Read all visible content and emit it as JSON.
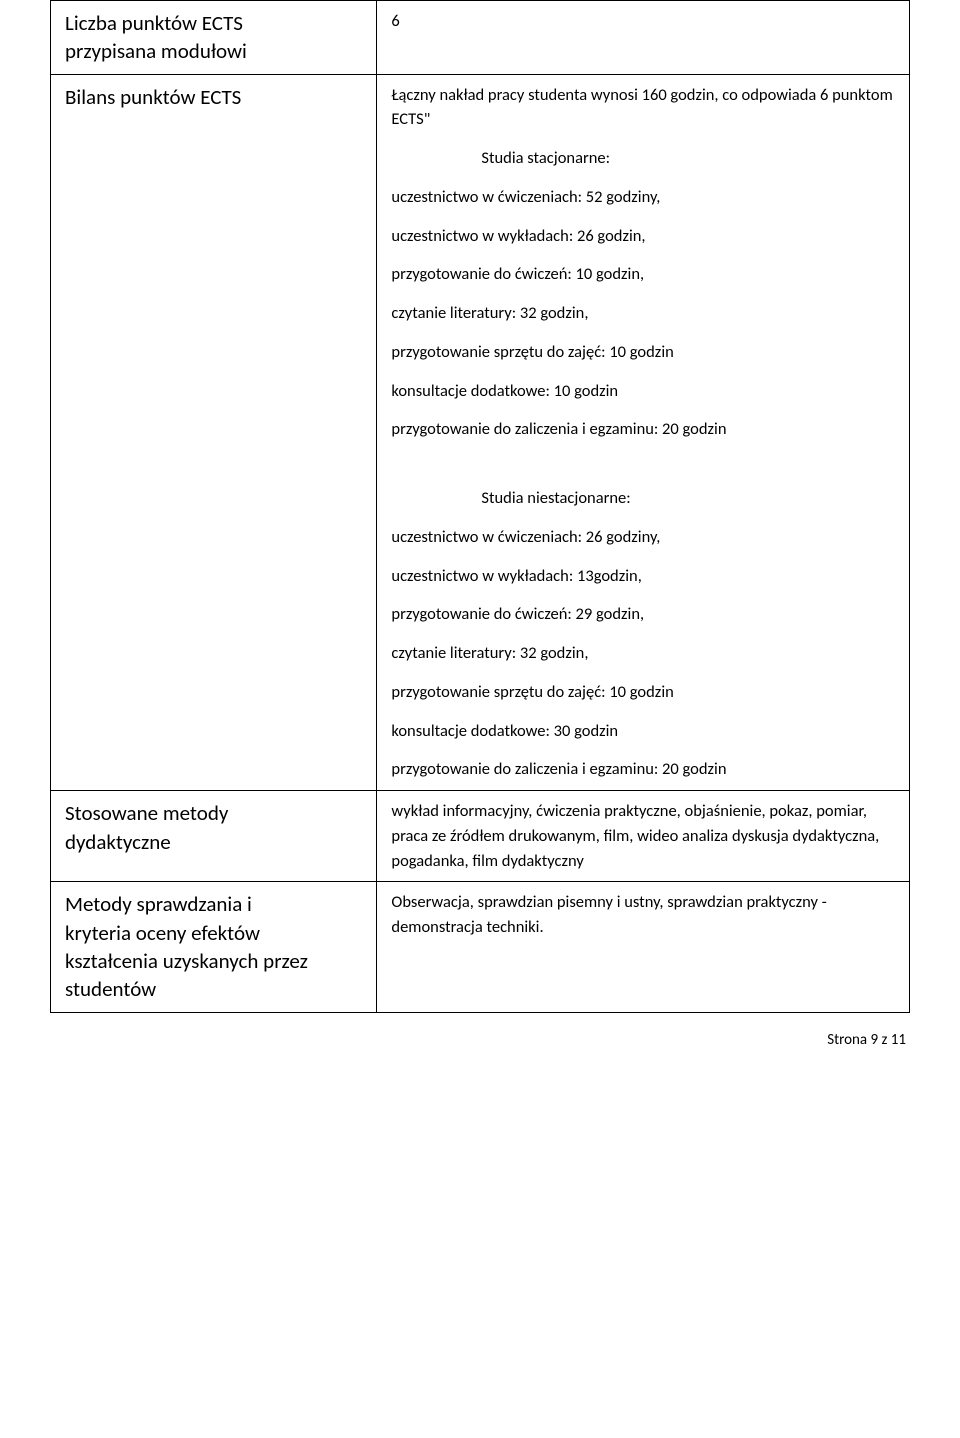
{
  "rows": {
    "row1": {
      "left_line1": "Liczba punktów ECTS",
      "left_line2": "przypisana modułowi",
      "right": "6"
    },
    "row2": {
      "left": "Bilans punktów ECTS",
      "summary": "Łączny nakład pracy studenta wynosi 160 godzin, co odpowiada 6 punktom ECTS\"",
      "stacj_heading": "Studia stacjonarne:",
      "stacj_items": {
        "i0": "uczestnictwo w ćwiczeniach: 52 godziny,",
        "i1": "uczestnictwo w wykładach: 26 godzin,",
        "i2": "przygotowanie do ćwiczeń:  10 godzin,",
        "i3": "czytanie literatury: 32 godzin,",
        "i4": "przygotowanie sprzętu do zajęć: 10 godzin",
        "i5": "konsultacje dodatkowe: 10 godzin",
        "i6": "przygotowanie do zaliczenia i egzaminu: 20 godzin"
      },
      "niest_heading": "Studia niestacjonarne:",
      "niest_items": {
        "i0": "uczestnictwo w ćwiczeniach: 26 godziny,",
        "i1": "uczestnictwo w wykładach: 13godzin,",
        "i2": "przygotowanie do ćwiczeń:  29 godzin,",
        "i3": "czytanie literatury: 32 godzin,",
        "i4": "przygotowanie sprzętu do zajęć: 10 godzin",
        "i5": "konsultacje dodatkowe: 30 godzin",
        "i6": "przygotowanie do zaliczenia i egzaminu: 20 godzin"
      }
    },
    "row3": {
      "left_line1": "Stosowane metody",
      "left_line2": "dydaktyczne",
      "right": "wykład informacyjny, ćwiczenia praktyczne, objaśnienie, pokaz, pomiar, praca ze źródłem drukowanym, film, wideo analiza dyskusja dydaktyczna, pogadanka, film dydaktyczny"
    },
    "row4": {
      "left_line1": "Metody sprawdzania i",
      "left_line2": "kryteria oceny efektów",
      "left_line3": "kształcenia uzyskanych przez",
      "left_line4": "studentów",
      "right": "Obserwacja, sprawdzian pisemny i ustny, sprawdzian praktyczny - demonstracja techniki."
    }
  },
  "footer": "Strona 9 z 11"
}
